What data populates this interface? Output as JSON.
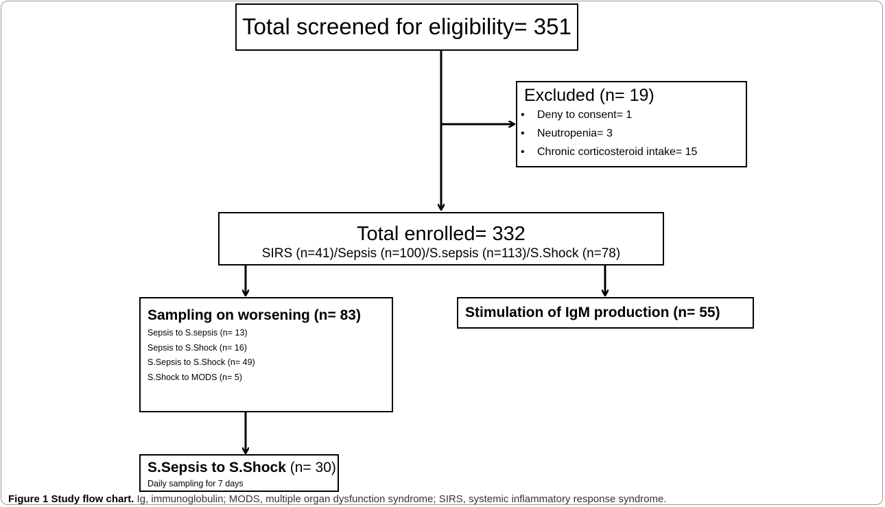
{
  "nodes": [
    {
      "title": "Total screened for eligibility= 351"
    },
    {
      "title": "Excluded (n= 19)",
      "items": [
        "Deny to consent= 1",
        "Neutropenia= 3",
        "Chronic corticosteroid intake= 15"
      ]
    },
    {
      "title": "Total enrolled= 332",
      "subtitle": "SIRS (n=41)/Sepsis (n=100)/S.sepsis (n=113)/S.Shock (n=78)"
    },
    {
      "title": "Sampling on worsening (n= 83)",
      "items": [
        "Sepsis to S.sepsis (n= 13)",
        "Sepsis to S.Shock (n= 16)",
        "S.Sepsis to S.Shock (n= 49)",
        "S.Shock to MODS (n= 5)"
      ]
    },
    {
      "title": "Stimulation of IgM production (n= 55)"
    },
    {
      "title": "S.Sepsis to S.Shock",
      "title_suffix": "(n= 30)",
      "items": [
        "Daily sampling for 7 days"
      ]
    }
  ],
  "caption": {
    "label": "Figure 1 Study flow chart.",
    "text": "Ig, immunoglobulin; MODS, multiple organ dysfunction syndrome; SIRS, systemic inflammatory response syndrome."
  }
}
